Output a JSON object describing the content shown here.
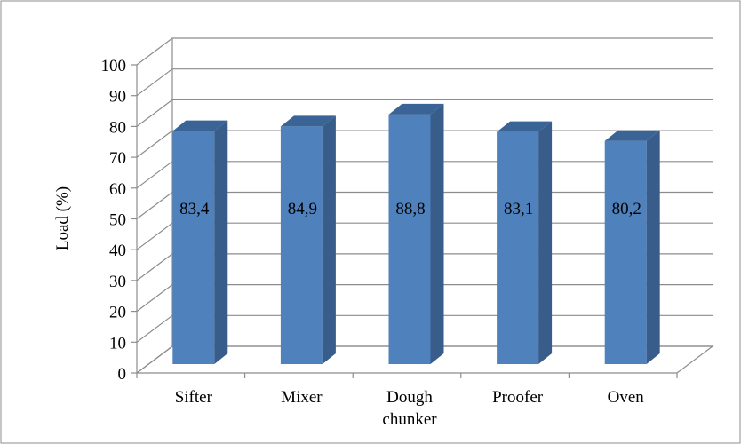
{
  "chart_data": {
    "type": "bar",
    "title": "",
    "xlabel": "",
    "ylabel": "Load (%)",
    "categories": [
      "Sifter",
      "Mixer",
      "Dough chunker",
      "Proofer",
      "Oven"
    ],
    "category_lines": [
      [
        "Sifter"
      ],
      [
        "Mixer"
      ],
      [
        "Dough",
        "chunker"
      ],
      [
        "Proofer"
      ],
      [
        "Oven"
      ]
    ],
    "values": [
      83.4,
      84.9,
      88.8,
      83.1,
      80.2
    ],
    "data_labels": [
      "83,4",
      "84,9",
      "88,8",
      "83,1",
      "80,2"
    ],
    "ylim": [
      0,
      100
    ],
    "yticks": [
      0,
      10,
      20,
      30,
      40,
      50,
      60,
      70,
      80,
      90,
      100
    ],
    "grid": true,
    "legend": "none",
    "style": "3d-column",
    "colors": {
      "bar_front": "#4f81bd",
      "bar_side": "#385d8a",
      "bar_top": "#3a6496",
      "grid": "#8c8c8c",
      "frame": "#8c8c8c"
    }
  }
}
